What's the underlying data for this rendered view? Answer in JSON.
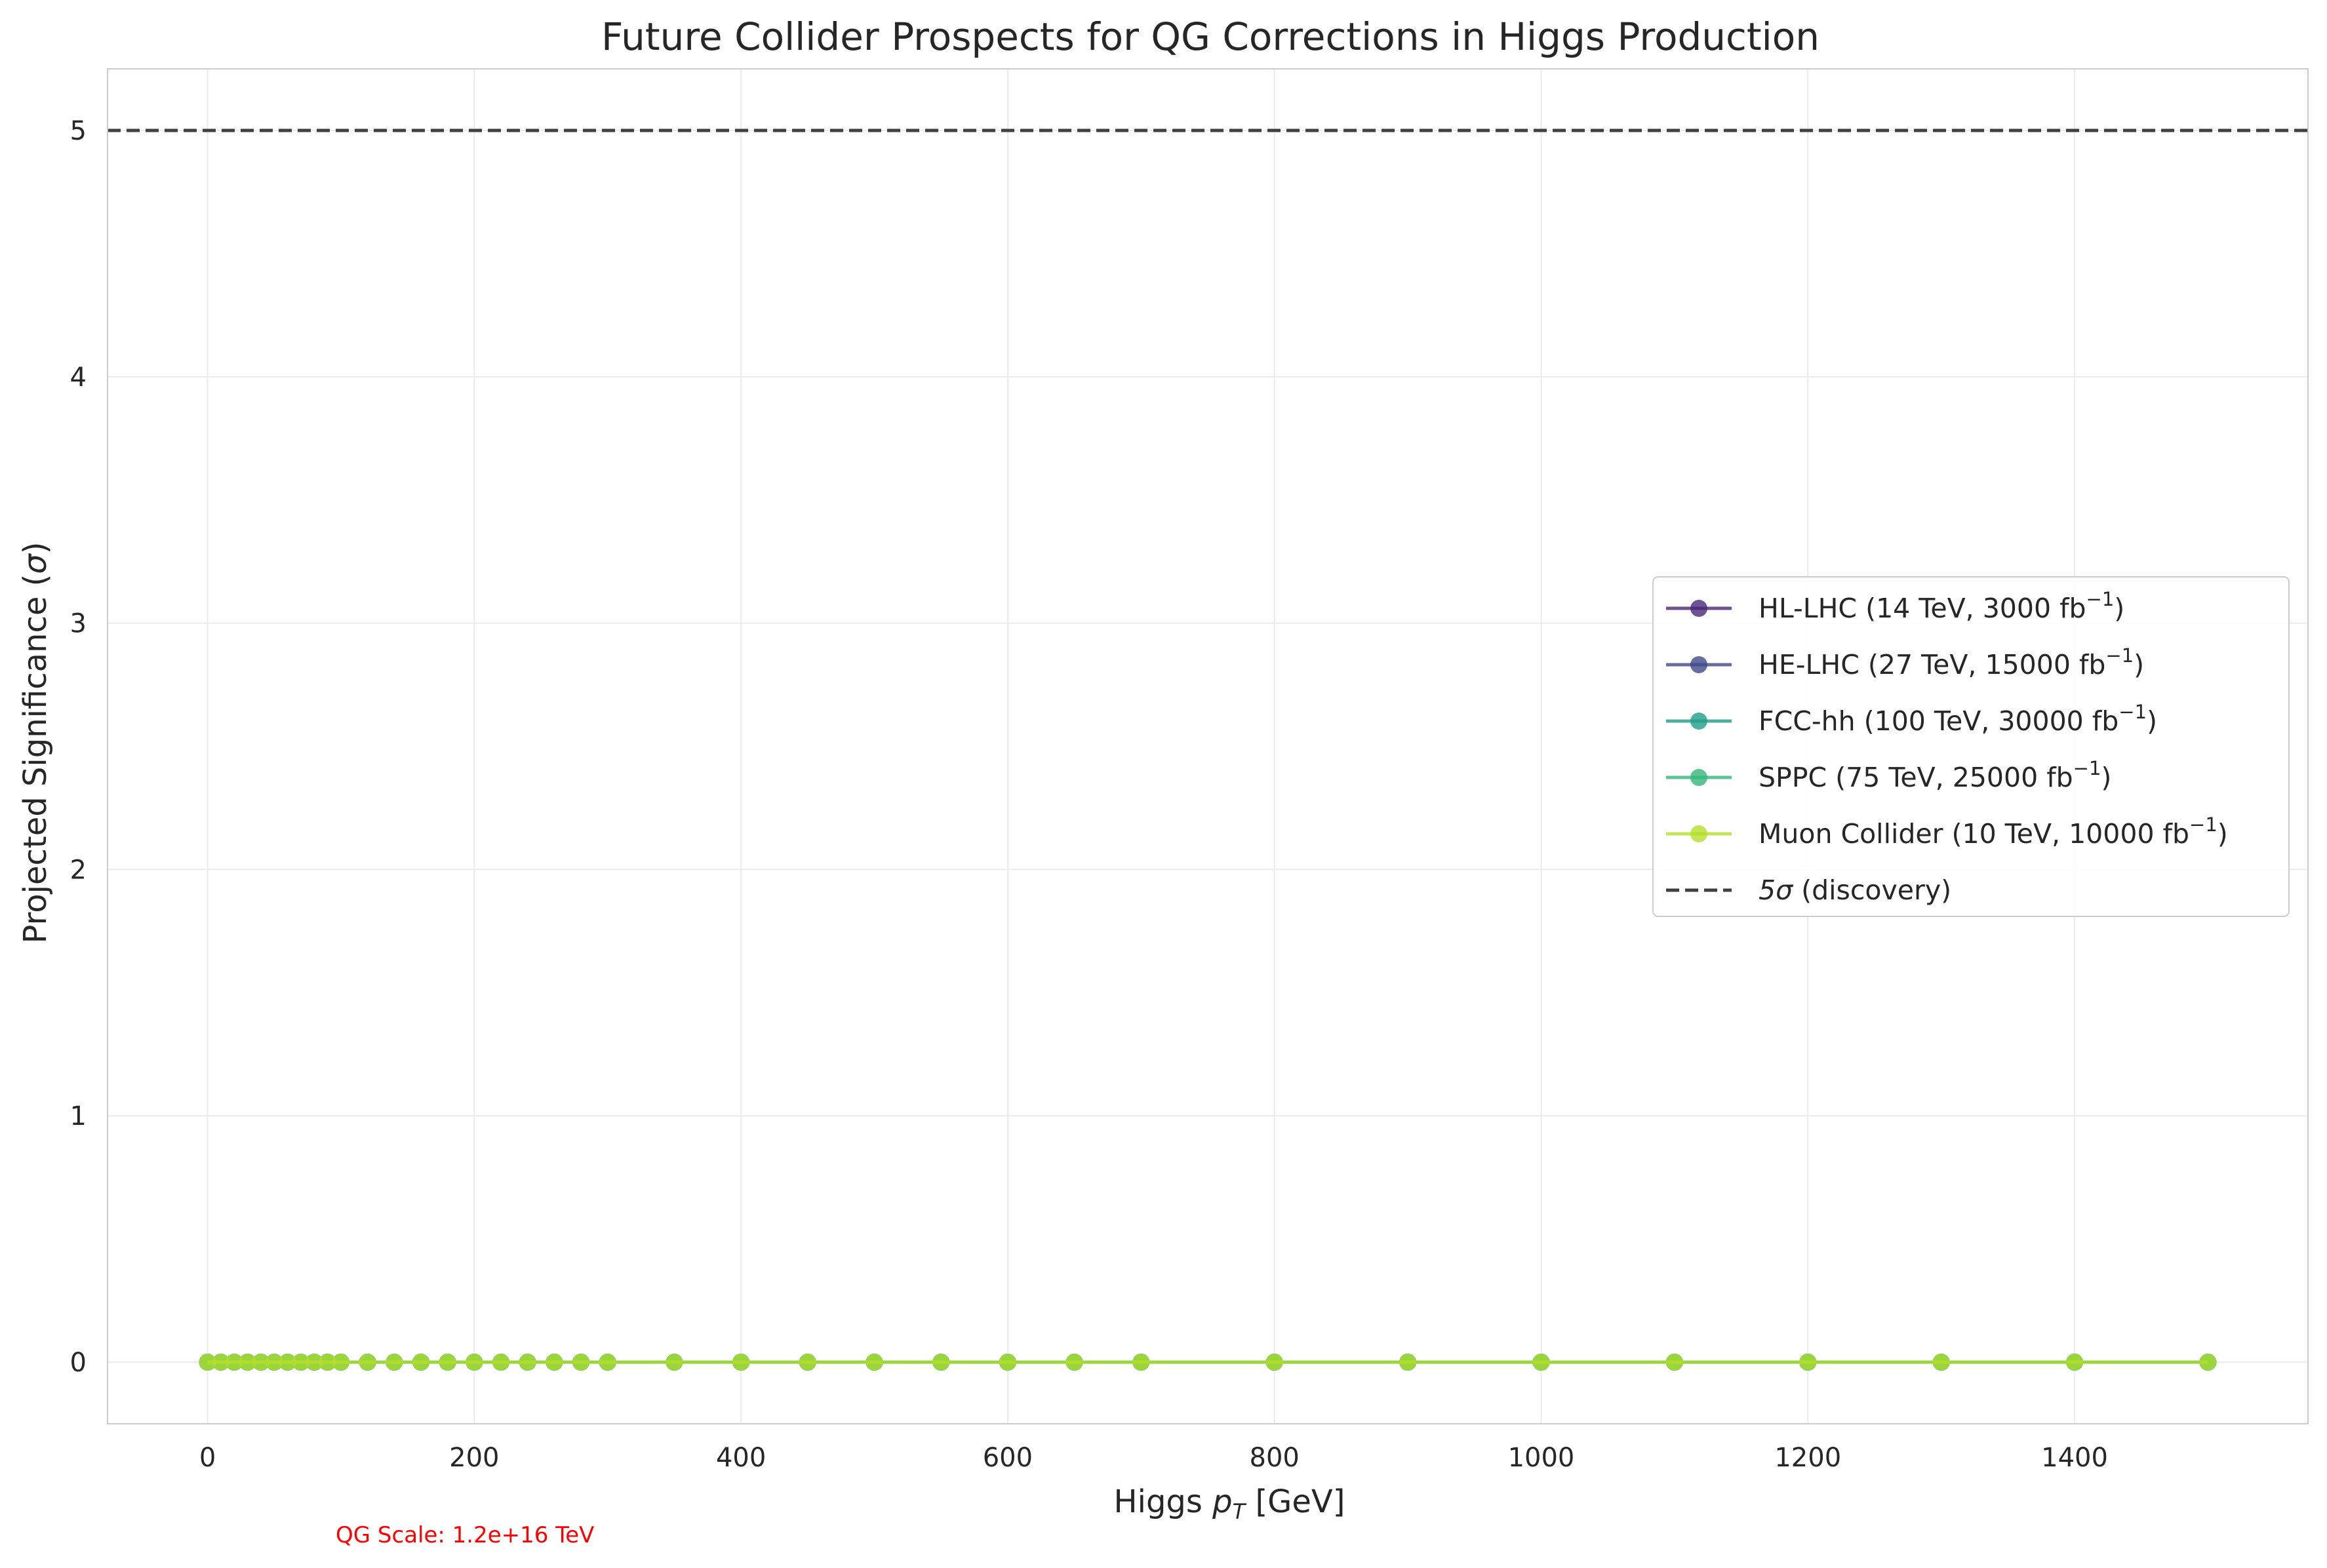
{
  "chart_data": {
    "type": "line",
    "title": "Future Collider Prospects for QG Corrections in Higgs Production",
    "xlabel": "Higgs p_T [GeV]",
    "xlabel_main": "Higgs ",
    "xlabel_sym": "p",
    "xlabel_sub": "T",
    "xlabel_unit": " [GeV]",
    "ylabel": "Projected Significance (σ)",
    "ylabel_main": "Projected Significance (",
    "ylabel_sym": "σ",
    "ylabel_close": ")",
    "xlim": [
      -75,
      1575
    ],
    "ylim": [
      -0.25,
      5.25
    ],
    "xticks": [
      0,
      200,
      400,
      600,
      800,
      1000,
      1200,
      1400
    ],
    "yticks": [
      0,
      1,
      2,
      3,
      4,
      5
    ],
    "grid": true,
    "legend_position": "center-right",
    "x": [
      0,
      10,
      20,
      30,
      40,
      50,
      60,
      70,
      80,
      90,
      100,
      120,
      140,
      160,
      180,
      200,
      220,
      240,
      260,
      280,
      300,
      350,
      400,
      450,
      500,
      550,
      600,
      650,
      700,
      800,
      900,
      1000,
      1100,
      1200,
      1300,
      1400,
      1500
    ],
    "series": [
      {
        "name": "HL-LHC (14 TeV, 3000 fb⁻¹)",
        "name_main": "HL-LHC (14 TeV, 3000 fb",
        "name_sup": "−1",
        "name_close": ")",
        "color": "#482878",
        "value": 0
      },
      {
        "name": "HE-LHC (27 TeV, 15000 fb⁻¹)",
        "name_main": "HE-LHC (27 TeV, 15000 fb",
        "name_sup": "−1",
        "name_close": ")",
        "color": "#3e4989",
        "value": 0
      },
      {
        "name": "FCC-hh (100 TeV, 30000 fb⁻¹)",
        "name_main": "FCC-hh (100 TeV, 30000 fb",
        "name_sup": "−1",
        "name_close": ")",
        "color": "#1f9e89",
        "value": 0
      },
      {
        "name": "SPPC (75 TeV, 25000 fb⁻¹)",
        "name_main": "SPPC (75 TeV, 25000 fb",
        "name_sup": "−1",
        "name_close": ")",
        "color": "#35b779",
        "value": 0
      },
      {
        "name": "Muon Collider (10 TeV, 10000 fb⁻¹)",
        "name_main": "Muon Collider (10 TeV, 10000 fb",
        "name_sup": "−1",
        "name_close": ")",
        "color": "#b5de2b",
        "value": 0
      }
    ],
    "reference_line": {
      "y": 5,
      "label": "5σ (discovery)",
      "label_sym": "5σ",
      "label_rest": " (discovery)",
      "color": "#404040"
    },
    "annotation": {
      "text": "QG Scale: 1.2e+16 TeV",
      "color": "#ff0000"
    }
  }
}
